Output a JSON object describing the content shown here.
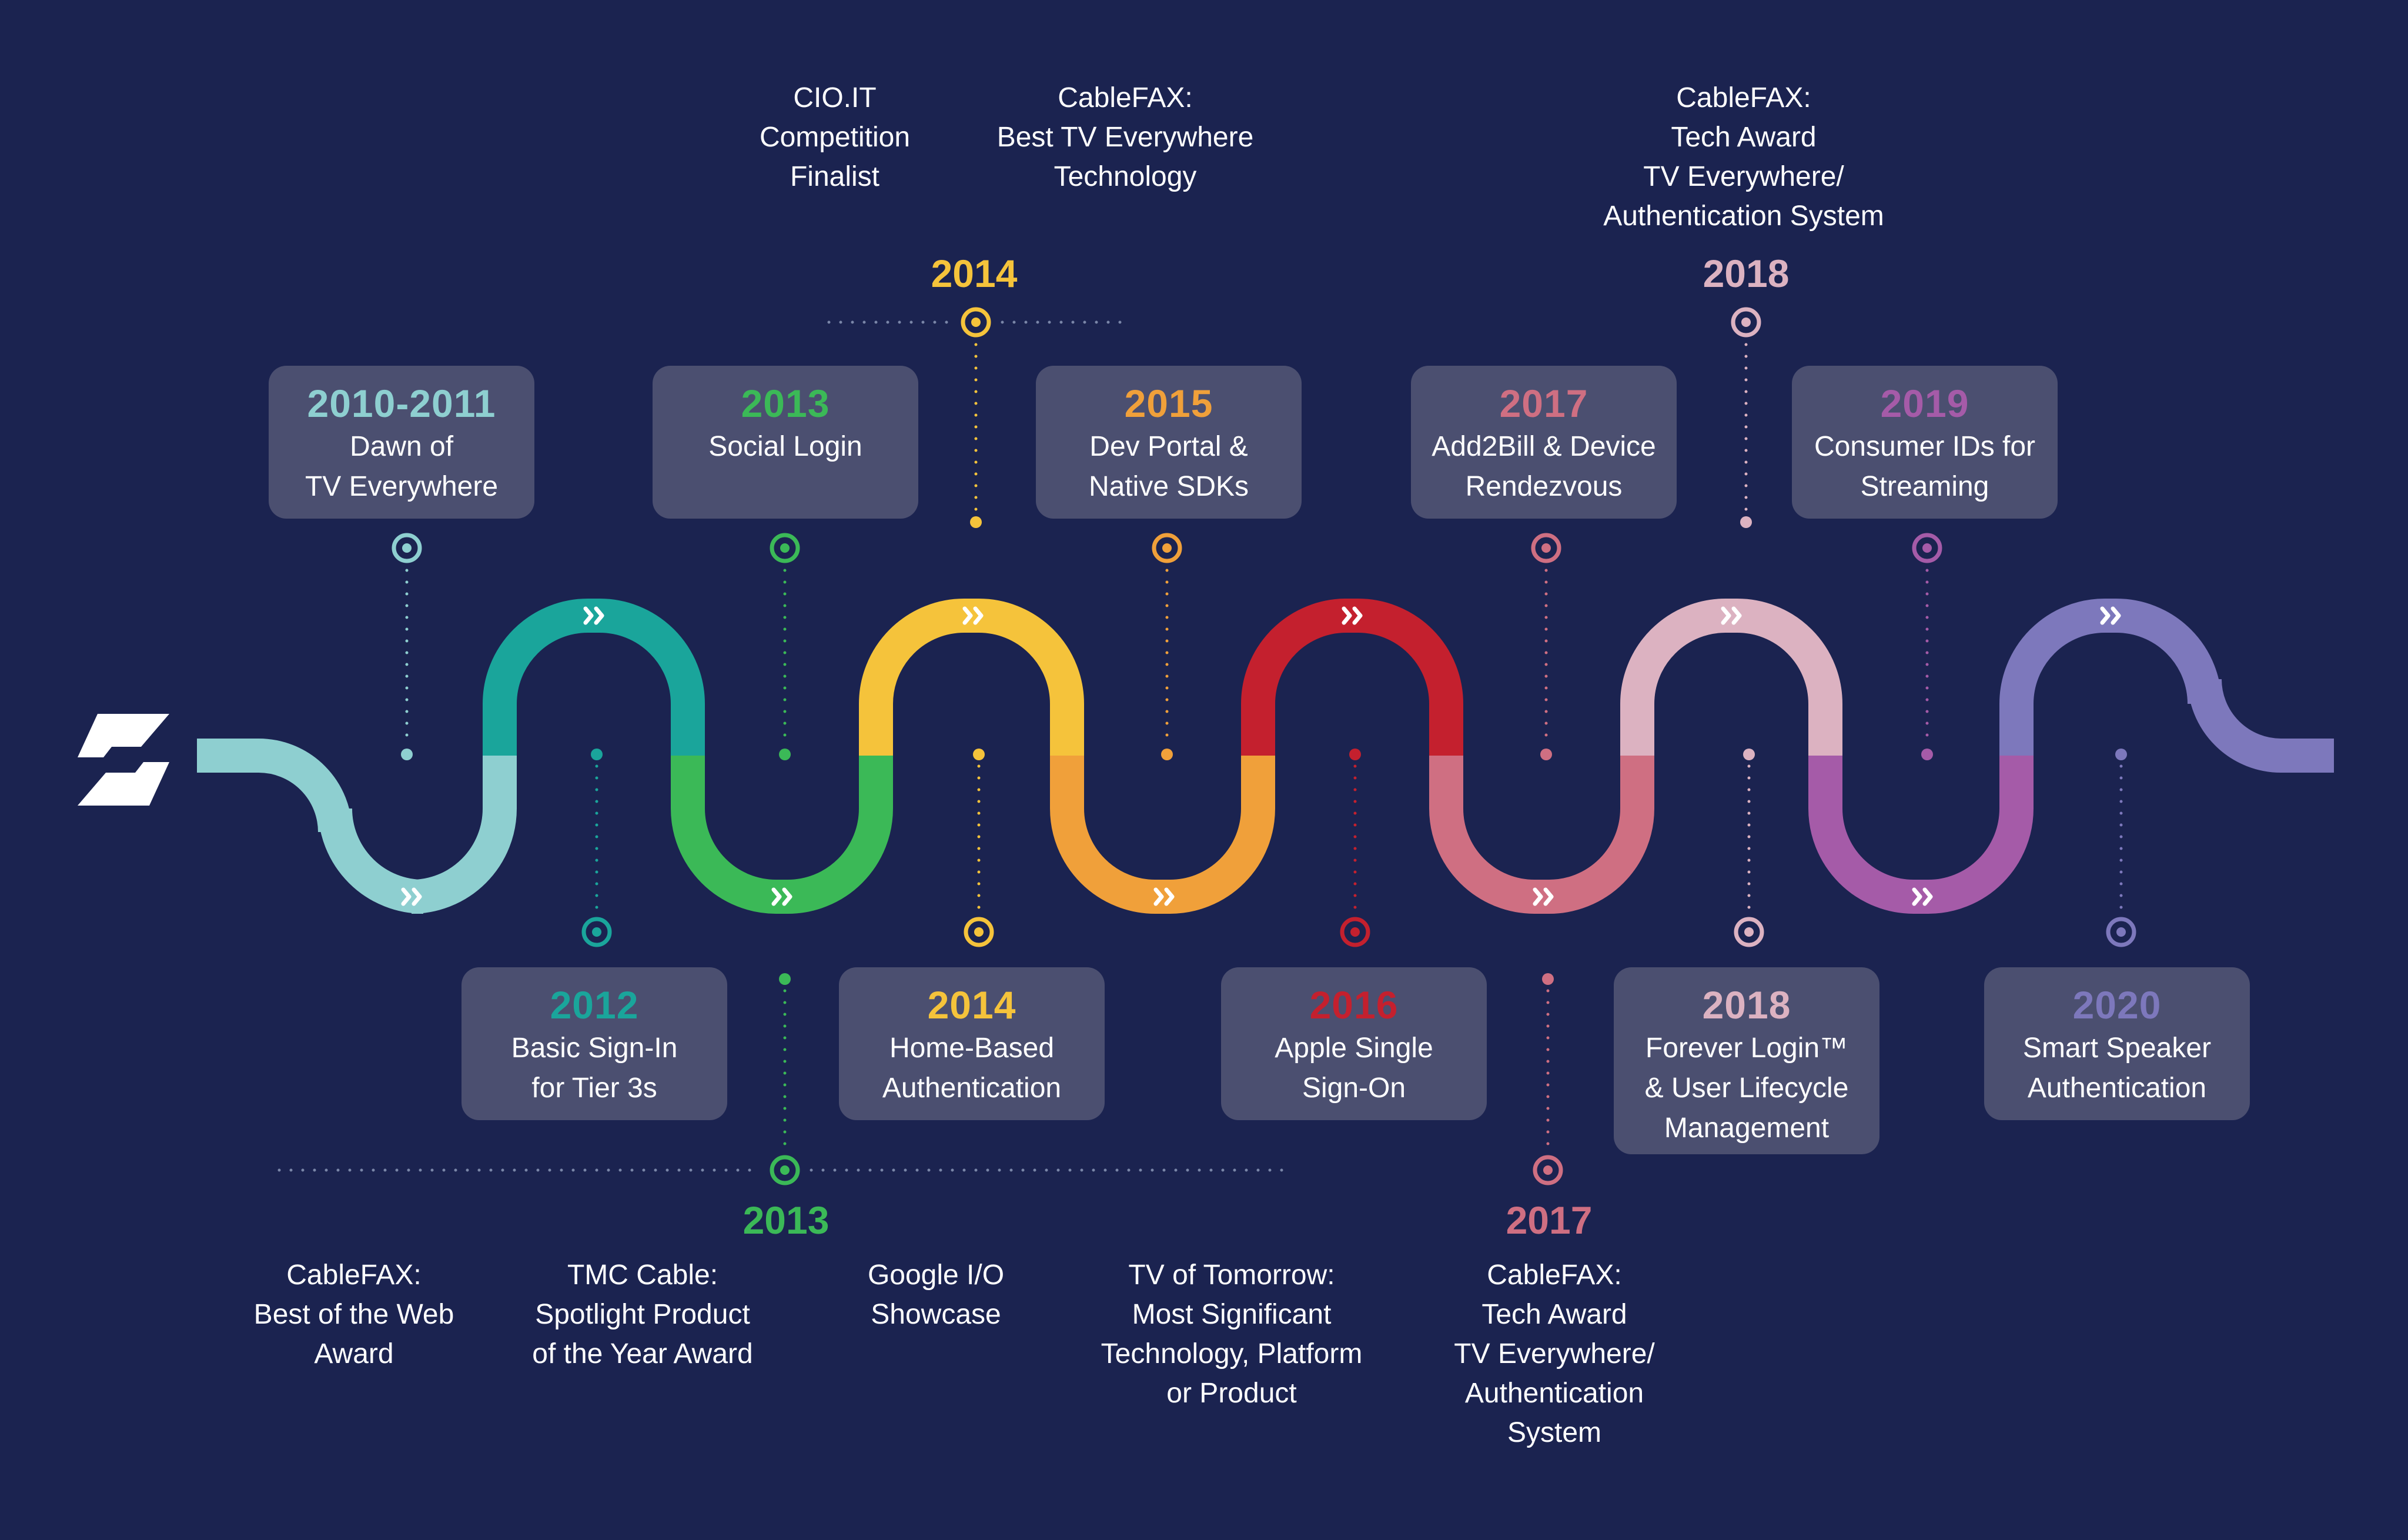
{
  "colors": {
    "background": "#1b2350",
    "card": "#4b4f70",
    "text": "#ffffff",
    "dotted_line": "#7a86a8"
  },
  "logo": {
    "name": "brand-logo-icon"
  },
  "milestones": [
    {
      "year": "2010-2011",
      "label": "Dawn of\nTV Everywhere",
      "color": "#8ecfd0"
    },
    {
      "year": "2012",
      "label": "Basic Sign-In\nfor Tier 3s",
      "color": "#1aa59b"
    },
    {
      "year": "2013",
      "label": "Social Login",
      "color": "#3bb957"
    },
    {
      "year": "2014",
      "label": "Home-Based\nAuthentication",
      "color": "#f5c33b"
    },
    {
      "year": "2015",
      "label": "Dev Portal &\nNative SDKs",
      "color": "#f0a03a"
    },
    {
      "year": "2016",
      "label": "Apple Single\nSign-On",
      "color": "#c4202e"
    },
    {
      "year": "2017",
      "label": "Add2Bill & Device\nRendezvous",
      "color": "#cf6f82"
    },
    {
      "year": "2018",
      "label": "Forever Login™\n& User Lifecycle\nManagement",
      "color": "#dcb2c1"
    },
    {
      "year": "2019",
      "label": "Consumer IDs for\nStreaming",
      "color": "#a55ba8"
    },
    {
      "year": "2020",
      "label": "Smart Speaker\nAuthentication",
      "color": "#7d78bc"
    }
  ],
  "awards": {
    "2013": {
      "year": "2013",
      "color": "#3bb957",
      "items": [
        "CableFAX:\nBest of the Web\nAward",
        "TMC Cable:\nSpotlight Product\nof the Year Award",
        "Google I/O\nShowcase",
        "TV of Tomorrow:\nMost Significant\nTechnology, Platform\nor Product"
      ]
    },
    "2014": {
      "year": "2014",
      "color": "#f5c33b",
      "items": [
        "CIO.IT\nCompetition\nFinalist",
        "CableFAX:\nBest TV Everywhere\nTechnology"
      ]
    },
    "2017": {
      "year": "2017",
      "color": "#cf6f82",
      "items": [
        "CableFAX:\nTech Award\nTV Everywhere/\nAuthentication\nSystem"
      ]
    },
    "2018": {
      "year": "2018",
      "color": "#dcb2c1",
      "items": [
        "CableFAX:\nTech Award\nTV Everywhere/\nAuthentication System"
      ]
    }
  }
}
